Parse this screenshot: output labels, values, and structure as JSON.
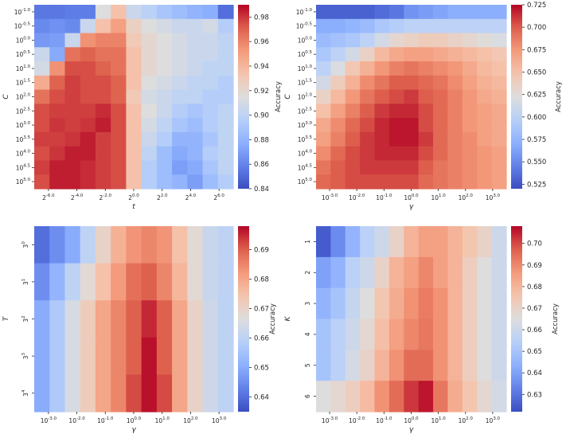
{
  "chart_data": [
    {
      "type": "heatmap",
      "title": "",
      "xlabel": "t",
      "ylabel": "C",
      "xticks": [
        "2^{-6.0}",
        "2^{-4.0}",
        "2^{-2.0}",
        "2^{0.0}",
        "2^{2.0}",
        "2^{4.0}",
        "2^{6.0}"
      ],
      "yticks": [
        "10^{-1.0}",
        "10^{-0.5}",
        "10^{0.0}",
        "10^{0.5}",
        "10^{1.0}",
        "10^{1.5}",
        "10^{2.0}",
        "10^{2.5}",
        "10^{3.0}",
        "10^{3.5}",
        "10^{4.0}",
        "10^{4.5}",
        "10^{5.0}"
      ],
      "colorbar": {
        "label": "Accuracy",
        "min": 0.84,
        "max": 0.99,
        "ticks": [
          "0.84",
          "0.86",
          "0.88",
          "0.90",
          "0.92",
          "0.94",
          "0.96",
          "0.98"
        ]
      },
      "values": [
        [
          0.855,
          0.855,
          0.857,
          0.857,
          0.915,
          0.935,
          0.905,
          0.898,
          0.89,
          0.885,
          0.88,
          0.877,
          0.852
        ],
        [
          0.862,
          0.865,
          0.862,
          0.905,
          0.935,
          0.95,
          0.925,
          0.915,
          0.91,
          0.905,
          0.905,
          0.91,
          0.895
        ],
        [
          0.868,
          0.87,
          0.905,
          0.955,
          0.96,
          0.96,
          0.93,
          0.92,
          0.915,
          0.91,
          0.905,
          0.905,
          0.9
        ],
        [
          0.905,
          0.875,
          0.965,
          0.97,
          0.965,
          0.965,
          0.935,
          0.92,
          0.915,
          0.91,
          0.905,
          0.905,
          0.9
        ],
        [
          0.91,
          0.955,
          0.975,
          0.975,
          0.97,
          0.965,
          0.935,
          0.92,
          0.915,
          0.91,
          0.905,
          0.9,
          0.9
        ],
        [
          0.945,
          0.97,
          0.978,
          0.975,
          0.975,
          0.97,
          0.935,
          0.915,
          0.91,
          0.905,
          0.9,
          0.9,
          0.895
        ],
        [
          0.965,
          0.975,
          0.978,
          0.975,
          0.975,
          0.97,
          0.93,
          0.91,
          0.905,
          0.9,
          0.9,
          0.895,
          0.895
        ],
        [
          0.975,
          0.978,
          0.978,
          0.978,
          0.982,
          0.975,
          0.935,
          0.915,
          0.905,
          0.895,
          0.89,
          0.895,
          0.9
        ],
        [
          0.975,
          0.98,
          0.978,
          0.98,
          0.985,
          0.975,
          0.935,
          0.91,
          0.9,
          0.89,
          0.885,
          0.895,
          0.9
        ],
        [
          0.978,
          0.978,
          0.98,
          0.985,
          0.978,
          0.975,
          0.935,
          0.905,
          0.895,
          0.88,
          0.88,
          0.89,
          0.9
        ],
        [
          0.975,
          0.98,
          0.985,
          0.985,
          0.978,
          0.975,
          0.935,
          0.9,
          0.885,
          0.875,
          0.88,
          0.895,
          0.9
        ],
        [
          0.978,
          0.985,
          0.985,
          0.982,
          0.978,
          0.975,
          0.935,
          0.895,
          0.885,
          0.87,
          0.875,
          0.89,
          0.9
        ],
        [
          0.975,
          0.985,
          0.985,
          0.982,
          0.978,
          0.975,
          0.935,
          0.895,
          0.885,
          0.88,
          0.87,
          0.885,
          0.895
        ]
      ]
    },
    {
      "type": "heatmap",
      "title": "",
      "xlabel": "γ",
      "ylabel": "C",
      "xticks": [
        "10^{-3.0}",
        "10^{-2.0}",
        "10^{-1.0}",
        "10^{0.0}",
        "10^{1.0}",
        "10^{2.0}",
        "10^{3.0}"
      ],
      "yticks": [
        "10^{-1.0}",
        "10^{-0.5}",
        "10^{0.0}",
        "10^{0.5}",
        "10^{1.0}",
        "10^{1.5}",
        "10^{2.0}",
        "10^{2.5}",
        "10^{3.0}",
        "10^{3.5}",
        "10^{4.0}",
        "10^{4.5}",
        "10^{5.0}"
      ],
      "colorbar": {
        "label": "Accuracy",
        "min": 0.52,
        "max": 0.725,
        "ticks": [
          "0.525",
          "0.550",
          "0.575",
          "0.600",
          "0.625",
          "0.650",
          "0.675",
          "0.700",
          "0.725"
        ]
      },
      "values": [
        [
          0.53,
          0.53,
          0.53,
          0.53,
          0.535,
          0.54,
          0.555,
          0.56,
          0.565,
          0.57,
          0.57,
          0.57,
          0.57
        ],
        [
          0.57,
          0.57,
          0.575,
          0.58,
          0.59,
          0.595,
          0.6,
          0.6,
          0.6,
          0.6,
          0.6,
          0.6,
          0.6
        ],
        [
          0.58,
          0.585,
          0.59,
          0.6,
          0.615,
          0.63,
          0.635,
          0.64,
          0.64,
          0.635,
          0.63,
          0.625,
          0.62
        ],
        [
          0.59,
          0.6,
          0.615,
          0.635,
          0.655,
          0.665,
          0.67,
          0.67,
          0.665,
          0.66,
          0.655,
          0.65,
          0.645
        ],
        [
          0.6,
          0.62,
          0.645,
          0.66,
          0.675,
          0.685,
          0.69,
          0.685,
          0.68,
          0.675,
          0.665,
          0.655,
          0.65
        ],
        [
          0.615,
          0.64,
          0.66,
          0.68,
          0.69,
          0.7,
          0.7,
          0.695,
          0.69,
          0.68,
          0.67,
          0.66,
          0.655
        ],
        [
          0.635,
          0.655,
          0.675,
          0.69,
          0.7,
          0.705,
          0.71,
          0.7,
          0.695,
          0.685,
          0.675,
          0.665,
          0.66
        ],
        [
          0.65,
          0.67,
          0.685,
          0.7,
          0.71,
          0.715,
          0.715,
          0.705,
          0.695,
          0.685,
          0.675,
          0.67,
          0.665
        ],
        [
          0.665,
          0.68,
          0.695,
          0.705,
          0.715,
          0.72,
          0.72,
          0.705,
          0.695,
          0.685,
          0.675,
          0.67,
          0.665
        ],
        [
          0.67,
          0.685,
          0.7,
          0.71,
          0.715,
          0.72,
          0.72,
          0.71,
          0.695,
          0.685,
          0.68,
          0.67,
          0.665
        ],
        [
          0.68,
          0.695,
          0.705,
          0.71,
          0.715,
          0.715,
          0.715,
          0.705,
          0.695,
          0.685,
          0.68,
          0.675,
          0.67
        ],
        [
          0.69,
          0.7,
          0.705,
          0.71,
          0.71,
          0.71,
          0.71,
          0.7,
          0.69,
          0.685,
          0.68,
          0.675,
          0.67
        ],
        [
          0.695,
          0.7,
          0.705,
          0.705,
          0.705,
          0.705,
          0.705,
          0.695,
          0.69,
          0.685,
          0.68,
          0.675,
          0.67
        ]
      ]
    },
    {
      "type": "heatmap",
      "title": "",
      "xlabel": "γ",
      "ylabel": "T",
      "xticks": [
        "10^{-3.0}",
        "10^{-2.0}",
        "10^{-1.0}",
        "10^{0.0}",
        "10^{1.0}",
        "10^{2.0}",
        "10^{3.0}"
      ],
      "yticks": [
        "3^{0}",
        "3^{1}",
        "3^{2}",
        "3^{3}",
        "3^{4}"
      ],
      "colorbar": {
        "label": "Accuracy",
        "min": 0.635,
        "max": 0.698,
        "ticks": [
          "0.64",
          "0.65",
          "0.66",
          "0.67",
          "0.68",
          "0.69"
        ]
      },
      "values": [
        [
          0.64,
          0.645,
          0.65,
          0.66,
          0.67,
          0.678,
          0.683,
          0.685,
          0.683,
          0.675,
          0.668,
          0.662,
          0.66
        ],
        [
          0.645,
          0.652,
          0.66,
          0.668,
          0.675,
          0.682,
          0.688,
          0.69,
          0.685,
          0.677,
          0.668,
          0.662,
          0.66
        ],
        [
          0.65,
          0.657,
          0.665,
          0.672,
          0.68,
          0.685,
          0.69,
          0.695,
          0.69,
          0.68,
          0.67,
          0.663,
          0.66
        ],
        [
          0.65,
          0.657,
          0.665,
          0.672,
          0.68,
          0.685,
          0.69,
          0.697,
          0.69,
          0.68,
          0.67,
          0.663,
          0.66
        ],
        [
          0.65,
          0.657,
          0.665,
          0.672,
          0.68,
          0.685,
          0.692,
          0.697,
          0.692,
          0.68,
          0.67,
          0.663,
          0.66
        ]
      ]
    },
    {
      "type": "heatmap",
      "title": "",
      "xlabel": "γ",
      "ylabel": "K",
      "xticks": [
        "10^{-3.0}",
        "10^{-2.0}",
        "10^{-1.0}",
        "10^{0.0}",
        "10^{1.0}",
        "10^{2.0}",
        "10^{3.0}"
      ],
      "yticks": [
        "1",
        "2",
        "3",
        "4",
        "5",
        "6"
      ],
      "colorbar": {
        "label": "Accuracy",
        "min": 0.622,
        "max": 0.708,
        "ticks": [
          "0.63",
          "0.64",
          "0.65",
          "0.66",
          "0.67",
          "0.68",
          "0.69",
          "0.70"
        ]
      },
      "values": [
        [
          0.625,
          0.635,
          0.645,
          0.655,
          0.66,
          0.67,
          0.68,
          0.685,
          0.685,
          0.68,
          0.675,
          0.67,
          0.66
        ],
        [
          0.64,
          0.645,
          0.655,
          0.66,
          0.67,
          0.68,
          0.685,
          0.69,
          0.685,
          0.68,
          0.672,
          0.665,
          0.66
        ],
        [
          0.645,
          0.65,
          0.658,
          0.665,
          0.675,
          0.682,
          0.688,
          0.692,
          0.688,
          0.68,
          0.672,
          0.665,
          0.66
        ],
        [
          0.65,
          0.655,
          0.66,
          0.668,
          0.677,
          0.685,
          0.69,
          0.693,
          0.688,
          0.68,
          0.672,
          0.665,
          0.66
        ],
        [
          0.65,
          0.655,
          0.662,
          0.67,
          0.68,
          0.688,
          0.695,
          0.695,
          0.688,
          0.68,
          0.672,
          0.665,
          0.66
        ],
        [
          0.665,
          0.668,
          0.672,
          0.678,
          0.688,
          0.695,
          0.702,
          0.706,
          0.693,
          0.682,
          0.675,
          0.668,
          0.662
        ]
      ]
    }
  ]
}
